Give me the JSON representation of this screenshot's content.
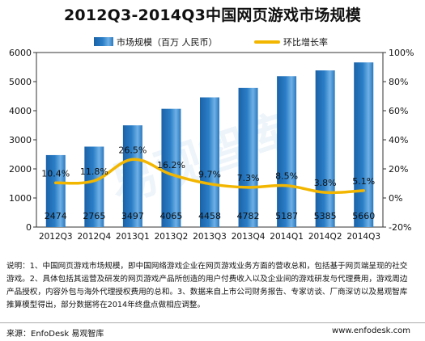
{
  "title": "2012Q3-2014Q3中国网页游戏市场规模",
  "note": "说明：1、中国网页游戏市场规模，即中国网络游戏企业在网页游戏业务方面的营收总和，包括基于网页端呈现的社交游戏。2、具体包括其运营及研发的网页游戏产品所创造的用户付费收入以及企业间的游戏研发与代理费用，游戏周边产品授权，内容外包与海外代理授权费用的总和。3、数据来自上市公司财务报告、专家访谈、厂商深访以及易观智库推算模型得出，部分数据将在2014年终盘点做相应调整。",
  "source": "来源：EnfoDesk 易观智库",
  "site": "www.enfodesk.com",
  "watermark": "易观智库",
  "chart_data": {
    "type": "bar",
    "categories": [
      "2012Q3",
      "2012Q4",
      "2013Q1",
      "2013Q2",
      "2013Q3",
      "2013Q4",
      "2014Q1",
      "2014Q2",
      "2014Q3"
    ],
    "series": [
      {
        "name": "市场规模（百万 人民币）",
        "type": "bar",
        "axis": "left",
        "color": "#2a7ec6",
        "values": [
          2474,
          2765,
          3497,
          4065,
          4458,
          4782,
          5187,
          5385,
          5660
        ],
        "labels": [
          "2474",
          "2765",
          "3497",
          "4065",
          "4458",
          "4782",
          "5187",
          "5385",
          "5660"
        ]
      },
      {
        "name": "环比增长率",
        "type": "line",
        "axis": "right",
        "color": "#f2b600",
        "values": [
          10.4,
          11.8,
          26.5,
          16.2,
          9.7,
          7.3,
          8.5,
          3.8,
          5.1
        ],
        "labels": [
          "10.4%",
          "11.8%",
          "26.5%",
          "16.2%",
          "9.7%",
          "7.3%",
          "8.5%",
          "3.8%",
          "5.1%"
        ]
      }
    ],
    "ylim_left": [
      0,
      6000
    ],
    "yticks_left": [
      "0",
      "1000",
      "2000",
      "3000",
      "4000",
      "5000",
      "6000"
    ],
    "ylim_right": [
      -20,
      100
    ],
    "yticks_right": [
      "-20%",
      "0%",
      "20%",
      "40%",
      "60%",
      "80%",
      "100%"
    ],
    "legend_position": "top"
  }
}
